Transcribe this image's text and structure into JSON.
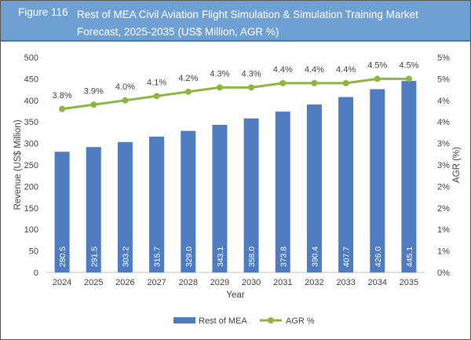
{
  "figure_label": "Figure 116",
  "title": "Rest of MEA Civil Aviation Flight Simulation & Simulation Training Market Forecast, 2025-2035 (US$ Million, AGR %)",
  "chart_data": {
    "type": "bar+line",
    "categories": [
      "2024",
      "2025",
      "2026",
      "2027",
      "2028",
      "2029",
      "2030",
      "2031",
      "2032",
      "2033",
      "2034",
      "2035"
    ],
    "series": [
      {
        "name": "Rest of MEA",
        "type": "bar",
        "axis": "left",
        "color": "#4f7cc0",
        "values": [
          280.5,
          291.5,
          303.2,
          315.7,
          329.0,
          343.1,
          358.0,
          373.8,
          390.4,
          407.7,
          426.0,
          445.1
        ]
      },
      {
        "name": "AGR %",
        "type": "line",
        "axis": "right",
        "color": "#8db640",
        "values": [
          3.8,
          3.9,
          4.0,
          4.1,
          4.2,
          4.3,
          4.3,
          4.4,
          4.4,
          4.4,
          4.5,
          4.5
        ],
        "labels": [
          "3.8%",
          "3.9%",
          "4.0%",
          "4.1%",
          "4.2%",
          "4.3%",
          "4.3%",
          "4.4%",
          "4.4%",
          "4.4%",
          "4.5%",
          "4.5%"
        ]
      }
    ],
    "xlabel": "Year",
    "ylabel": "Revenue (US$ Million)",
    "y2label": "AGR (%)",
    "ylim": [
      0,
      500
    ],
    "yticks": [
      "0",
      "50",
      "100",
      "150",
      "200",
      "250",
      "300",
      "350",
      "400",
      "450",
      "500"
    ],
    "y2lim": [
      0,
      5
    ],
    "y2ticks": [
      "0%",
      "1%",
      "1%",
      "2%",
      "2%",
      "3%",
      "3%",
      "4%",
      "4%",
      "5%",
      "5%"
    ],
    "grid": false,
    "legend": "bottom"
  }
}
